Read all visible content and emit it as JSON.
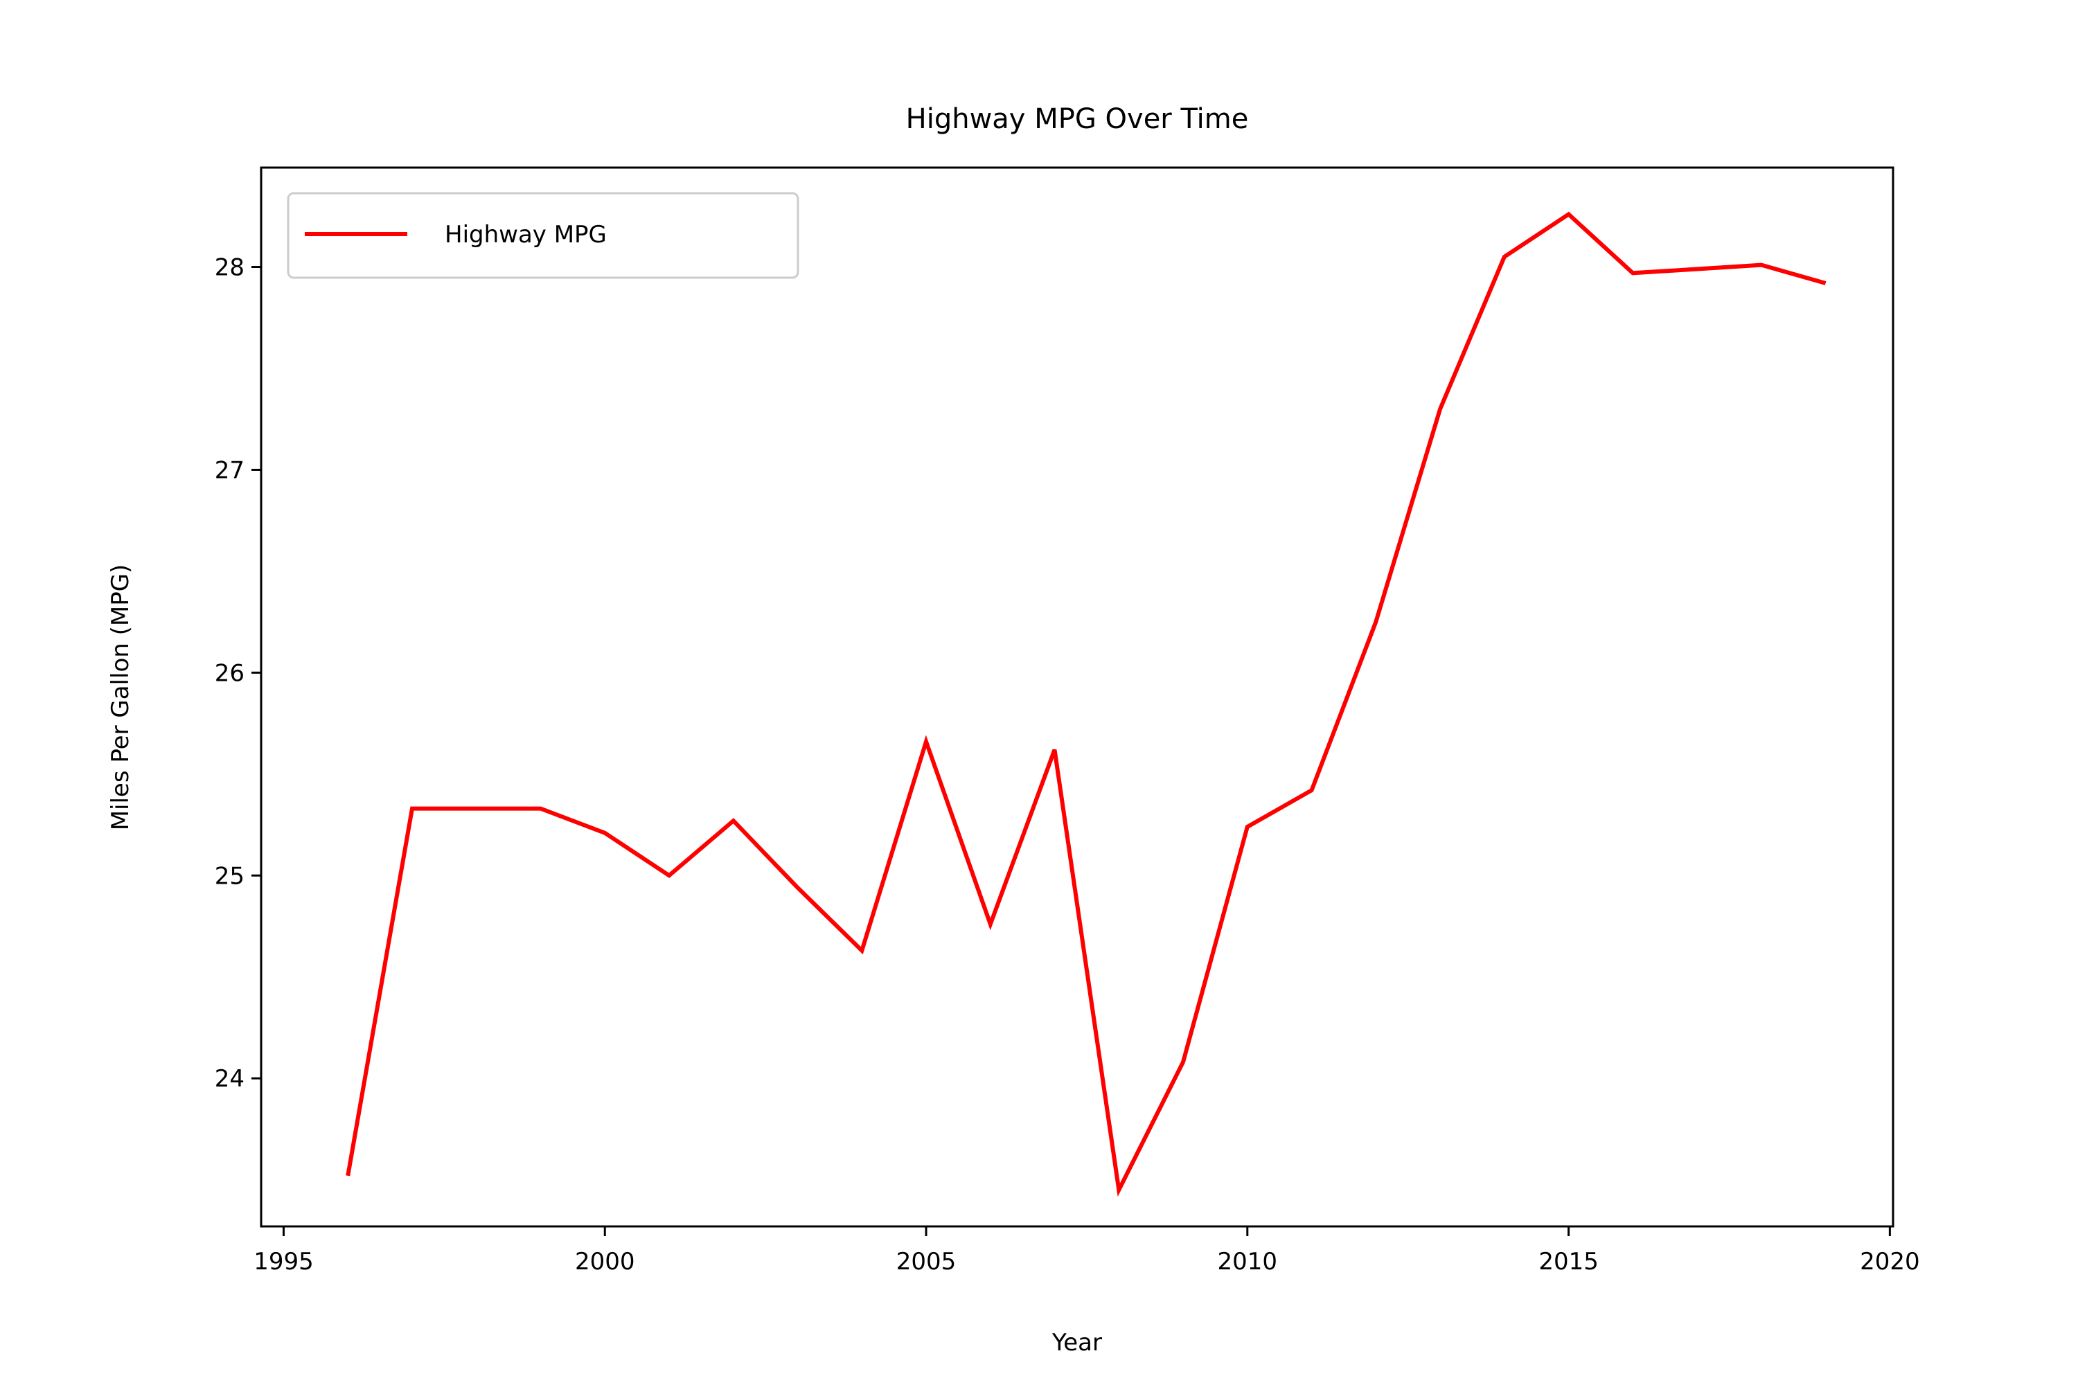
{
  "chart_data": {
    "type": "line",
    "title": "Highway MPG Over Time",
    "xlabel": "Year",
    "ylabel": "Miles Per Gallon (MPG)",
    "xlim": [
      1994.65,
      2020.05
    ],
    "ylim": [
      23.27,
      28.49
    ],
    "xticks": [
      1995,
      2000,
      2005,
      2010,
      2015,
      2020
    ],
    "yticks": [
      24,
      25,
      26,
      27,
      28
    ],
    "grid": false,
    "legend_position": "upper left",
    "series": [
      {
        "name": "Highway MPG",
        "color": "#ff0000",
        "x": [
          1996,
          1997,
          1998,
          1999,
          2000,
          2001,
          2002,
          2003,
          2004,
          2005,
          2006,
          2007,
          2008,
          2009,
          2010,
          2011,
          2012,
          2013,
          2014,
          2015,
          2016,
          2017,
          2018,
          2019
        ],
        "y": [
          23.52,
          25.33,
          25.33,
          25.33,
          25.21,
          25.0,
          25.27,
          24.94,
          24.63,
          25.66,
          24.76,
          25.62,
          23.45,
          24.08,
          25.24,
          25.42,
          26.25,
          27.3,
          28.05,
          28.26,
          27.97,
          27.99,
          28.01,
          27.92
        ]
      }
    ]
  }
}
